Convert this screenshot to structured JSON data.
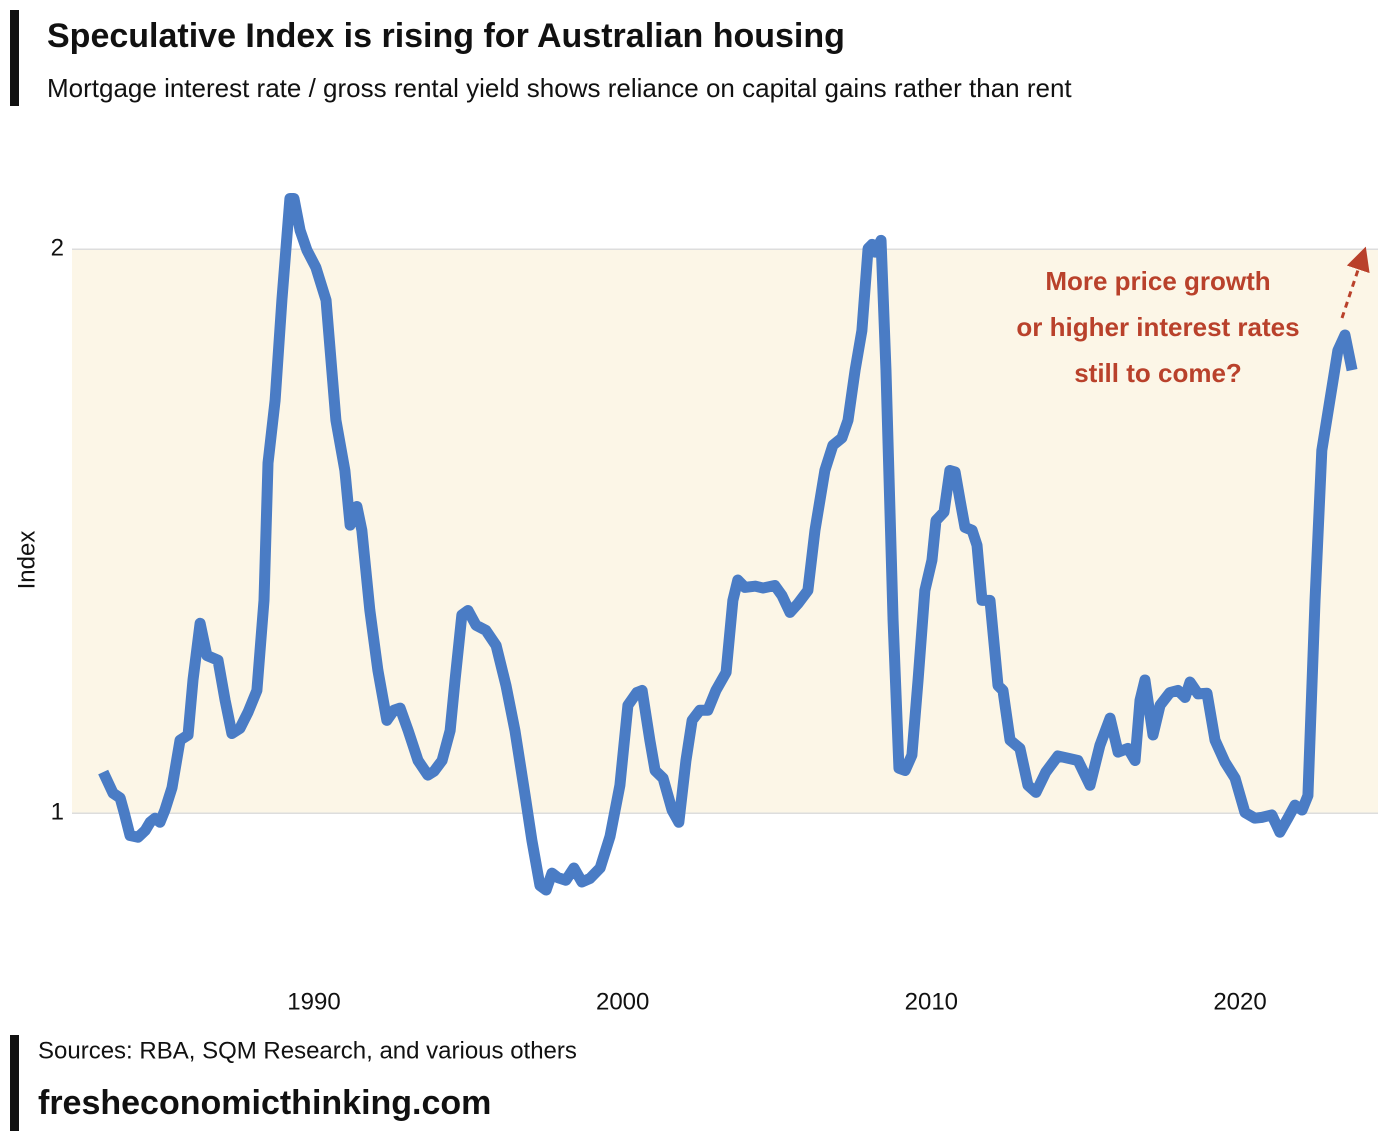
{
  "chart_data": {
    "type": "line",
    "title": "Speculative Index is rising for Australian housing",
    "subtitle": "Mortgage interest rate / gross rental yield shows reliance on capital gains rather than rent",
    "y_label": "Index",
    "yscale": "log",
    "ylim": [
      0.835,
      2.232
    ],
    "yticks": [
      1,
      2
    ],
    "xlim": [
      1982.16,
      2024.47
    ],
    "xticks": [
      1990,
      2000,
      2010,
      2020
    ],
    "grid": true,
    "annotation": [
      "More price growth",
      "or higher interest rates",
      "still to come?"
    ],
    "annotation_color": "#b9412b",
    "source": "Sources: RBA, SQM Research, and various others",
    "website": "fresheconomicthinking.com",
    "series": [
      {
        "color": "#4a7cc5",
        "x": [
          1983.17,
          1983.49,
          1983.72,
          1983.85,
          1984.04,
          1984.3,
          1984.53,
          1984.69,
          1984.85,
          1985.01,
          1985.17,
          1985.4,
          1985.66,
          1985.92,
          1986.08,
          1986.31,
          1986.53,
          1986.89,
          1987.12,
          1987.34,
          1987.6,
          1987.86,
          1988.15,
          1988.38,
          1988.51,
          1988.74,
          1988.96,
          1989.22,
          1989.35,
          1989.55,
          1989.77,
          1990.06,
          1990.39,
          1990.71,
          1991.0,
          1991.17,
          1991.39,
          1991.55,
          1991.81,
          1992.07,
          1992.36,
          1992.59,
          1992.79,
          1993.05,
          1993.37,
          1993.69,
          1993.89,
          1994.15,
          1994.41,
          1994.57,
          1994.79,
          1994.99,
          1995.25,
          1995.57,
          1995.9,
          1996.22,
          1996.51,
          1996.84,
          1997.06,
          1997.32,
          1997.52,
          1997.71,
          1997.9,
          1998.16,
          1998.42,
          1998.68,
          1998.94,
          1999.27,
          1999.59,
          1999.91,
          2000.17,
          2000.46,
          2000.63,
          2000.88,
          2001.05,
          2001.31,
          2001.6,
          2001.82,
          2002.05,
          2002.25,
          2002.5,
          2002.76,
          2003.02,
          2003.35,
          2003.57,
          2003.73,
          2003.96,
          2004.29,
          2004.55,
          2004.93,
          2005.16,
          2005.42,
          2005.68,
          2006.0,
          2006.23,
          2006.55,
          2006.81,
          2007.1,
          2007.3,
          2007.53,
          2007.75,
          2007.95,
          2008.08,
          2008.17,
          2008.37,
          2008.53,
          2008.76,
          2008.95,
          2009.15,
          2009.37,
          2009.57,
          2009.79,
          2010.02,
          2010.15,
          2010.41,
          2010.6,
          2010.77,
          2010.93,
          2011.09,
          2011.32,
          2011.48,
          2011.64,
          2011.9,
          2012.16,
          2012.32,
          2012.55,
          2012.87,
          2013.13,
          2013.39,
          2013.71,
          2014.1,
          2014.43,
          2014.75,
          2015.14,
          2015.46,
          2015.79,
          2016.05,
          2016.37,
          2016.6,
          2016.76,
          2016.92,
          2017.18,
          2017.41,
          2017.73,
          2017.99,
          2018.22,
          2018.38,
          2018.64,
          2018.93,
          2019.19,
          2019.51,
          2019.84,
          2020.16,
          2020.48,
          2020.71,
          2021.03,
          2021.29,
          2021.55,
          2021.78,
          2022.01,
          2022.2,
          2022.43,
          2022.65,
          2022.91,
          2023.17,
          2023.4,
          2023.63
        ],
        "values": [
          1.052,
          1.025,
          1.019,
          1.001,
          0.973,
          0.971,
          0.979,
          0.989,
          0.994,
          0.989,
          1.004,
          1.032,
          1.094,
          1.101,
          1.178,
          1.263,
          1.214,
          1.207,
          1.149,
          1.103,
          1.11,
          1.132,
          1.163,
          1.299,
          1.538,
          1.661,
          1.879,
          2.129,
          2.129,
          2.047,
          1.998,
          1.956,
          1.879,
          1.621,
          1.524,
          1.425,
          1.458,
          1.416,
          1.283,
          1.192,
          1.121,
          1.135,
          1.138,
          1.107,
          1.067,
          1.048,
          1.053,
          1.067,
          1.107,
          1.178,
          1.276,
          1.283,
          1.26,
          1.252,
          1.229,
          1.17,
          1.107,
          1.022,
          0.967,
          0.915,
          0.91,
          0.929,
          0.924,
          0.921,
          0.935,
          0.919,
          0.923,
          0.935,
          0.972,
          1.035,
          1.142,
          1.16,
          1.163,
          1.094,
          1.054,
          1.044,
          1.004,
          0.989,
          1.067,
          1.121,
          1.135,
          1.135,
          1.163,
          1.189,
          1.299,
          1.332,
          1.32,
          1.322,
          1.319,
          1.323,
          1.307,
          1.28,
          1.294,
          1.315,
          1.416,
          1.524,
          1.572,
          1.586,
          1.621,
          1.724,
          1.81,
          2.002,
          2.012,
          1.993,
          2.022,
          1.724,
          1.268,
          1.057,
          1.054,
          1.074,
          1.178,
          1.315,
          1.365,
          1.433,
          1.448,
          1.524,
          1.521,
          1.469,
          1.421,
          1.416,
          1.39,
          1.299,
          1.299,
          1.17,
          1.163,
          1.094,
          1.083,
          1.035,
          1.026,
          1.052,
          1.073,
          1.07,
          1.067,
          1.035,
          1.087,
          1.124,
          1.078,
          1.083,
          1.067,
          1.149,
          1.178,
          1.101,
          1.142,
          1.16,
          1.163,
          1.153,
          1.175,
          1.158,
          1.159,
          1.094,
          1.065,
          1.044,
          1.001,
          0.994,
          0.995,
          0.998,
          0.977,
          0.994,
          1.01,
          1.004,
          1.022,
          1.299,
          1.562,
          1.661,
          1.766,
          1.8,
          1.724
        ]
      }
    ]
  }
}
